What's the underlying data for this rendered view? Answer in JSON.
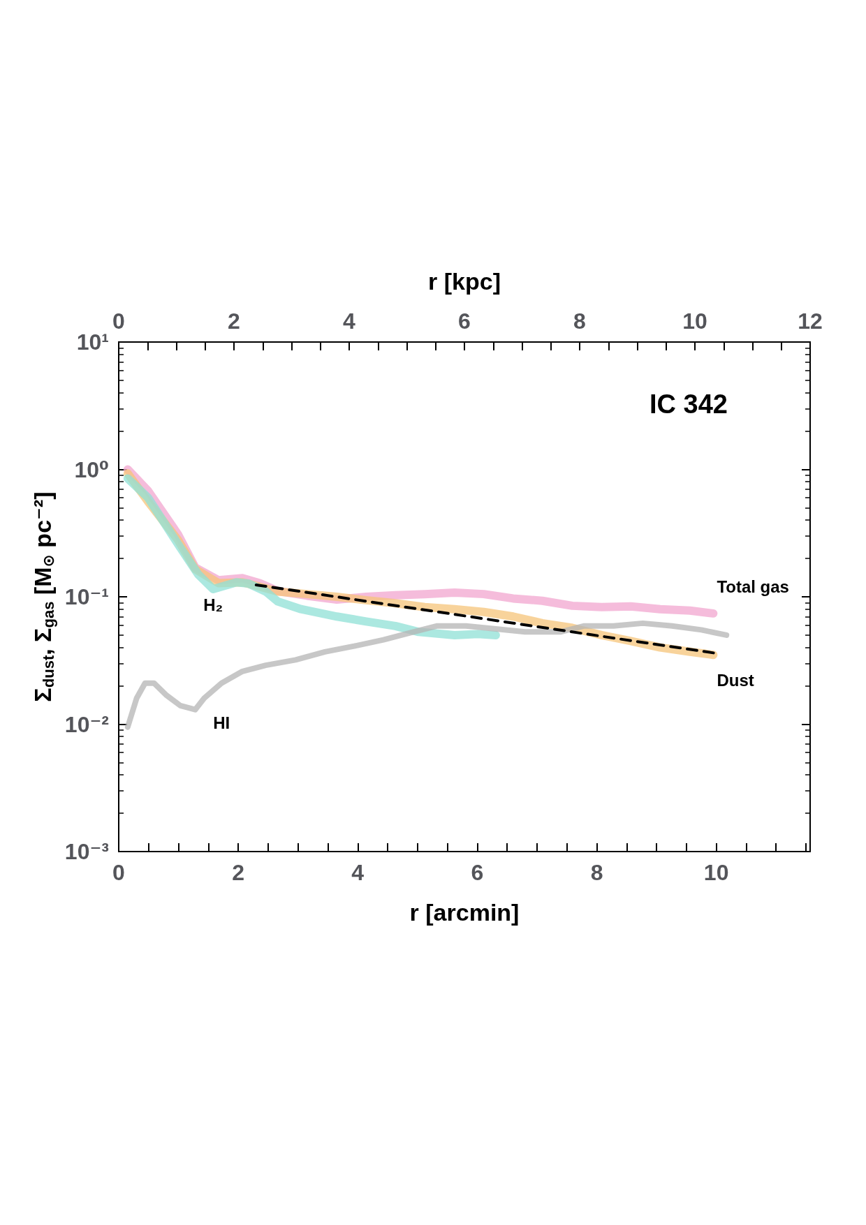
{
  "chart_data": {
    "type": "line",
    "xlabel": "r [arcmin]",
    "x2label": "r [kpc]",
    "ylabel": "Σ$_{dust}$, Σ$_{gas}$ [M$_{⊙}$ pc⁻²]",
    "annotations": [
      "IC 342"
    ],
    "log": "y",
    "grid": false,
    "legend": false,
    "marker": "none",
    "line_style": "solid",
    "xlim": [
      0,
      11.57
    ],
    "xticks": [
      0,
      {
        "value": 0.5,
        "label": null
      },
      {
        "value": 1,
        "label": null
      },
      {
        "value": 1.5,
        "label": null
      },
      2,
      {
        "value": 2.5,
        "label": null
      },
      {
        "value": 3,
        "label": null
      },
      {
        "value": 3.5,
        "label": null
      },
      4,
      {
        "value": 4.5,
        "label": null
      },
      {
        "value": 5,
        "label": null
      },
      {
        "value": 5.5,
        "label": null
      },
      6,
      {
        "value": 6.5,
        "label": null
      },
      {
        "value": 7,
        "label": null
      },
      {
        "value": 7.5,
        "label": null
      },
      8,
      {
        "value": 8.5,
        "label": null
      },
      {
        "value": 9,
        "label": null
      },
      {
        "value": 9.5,
        "label": null
      },
      10,
      {
        "value": 10.5,
        "label": null
      },
      {
        "value": 11,
        "label": null
      },
      {
        "value": 11.5,
        "label": null
      }
    ],
    "x2lim": [
      0,
      12
    ],
    "x2ticks": [
      0,
      {
        "value": 0.5,
        "label": null
      },
      {
        "value": 1,
        "label": null
      },
      {
        "value": 1.5,
        "label": null
      },
      2,
      {
        "value": 2.5,
        "label": null
      },
      {
        "value": 3,
        "label": null
      },
      {
        "value": 3.5,
        "label": null
      },
      4,
      {
        "value": 4.5,
        "label": null
      },
      {
        "value": 5,
        "label": null
      },
      {
        "value": 5.5,
        "label": null
      },
      6,
      {
        "value": 6.5,
        "label": null
      },
      {
        "value": 7,
        "label": null
      },
      {
        "value": 7.5,
        "label": null
      },
      8,
      {
        "value": 8.5,
        "label": null
      },
      {
        "value": 9,
        "label": null
      },
      {
        "value": 9.5,
        "label": null
      },
      10,
      {
        "value": 10.5,
        "label": null
      },
      {
        "value": 11,
        "label": null
      },
      {
        "value": 11.5,
        "label": null
      },
      12
    ],
    "ylim": [
      0.001,
      10
    ],
    "yticks": [
      {
        "value": 0.001,
        "label": "10⁻³"
      },
      {
        "value": 0.01,
        "label": "10⁻²"
      },
      {
        "value": 0.1,
        "label": "10⁻¹"
      },
      {
        "value": 1,
        "label": "10⁰"
      },
      {
        "value": 10,
        "label": "10¹"
      }
    ],
    "series": [
      {
        "name": "Total gas",
        "color": "#f2a6cf",
        "x": [
          0.15,
          0.49,
          0.99,
          1.28,
          1.67,
          2.07,
          2.36,
          2.66,
          3.15,
          3.65,
          4.14,
          4.63,
          5.12,
          5.62,
          6.11,
          6.6,
          7.09,
          7.59,
          8.08,
          8.57,
          9.06,
          9.56,
          9.95
        ],
        "values": [
          1.0,
          0.68,
          0.31,
          0.17,
          0.135,
          0.14,
          0.128,
          0.111,
          0.102,
          0.095,
          0.1,
          0.103,
          0.105,
          0.108,
          0.105,
          0.097,
          0.093,
          0.085,
          0.083,
          0.084,
          0.08,
          0.078,
          0.074
        ]
      },
      {
        "name": "Dust",
        "color": "#f5c47a",
        "x": [
          0.15,
          0.49,
          0.99,
          1.28,
          1.67,
          2.07,
          2.36,
          2.66,
          3.15,
          3.65,
          4.14,
          4.63,
          5.12,
          5.62,
          6.11,
          6.6,
          7.09,
          7.59,
          8.08,
          8.57,
          9.06,
          9.56,
          9.95
        ],
        "values": [
          0.93,
          0.56,
          0.28,
          0.165,
          0.128,
          0.13,
          0.12,
          0.11,
          0.105,
          0.1,
          0.094,
          0.089,
          0.083,
          0.08,
          0.076,
          0.07,
          0.062,
          0.057,
          0.05,
          0.045,
          0.04,
          0.037,
          0.035
        ]
      },
      {
        "name": "H₂",
        "color": "#8fe0d6",
        "x": [
          0.15,
          0.49,
          0.99,
          1.33,
          1.58,
          1.97,
          2.17,
          2.46,
          2.66,
          3.05,
          3.65,
          4.14,
          4.63,
          5.02,
          5.62,
          6.01,
          6.31
        ],
        "values": [
          0.85,
          0.6,
          0.26,
          0.15,
          0.115,
          0.13,
          0.127,
          0.11,
          0.092,
          0.08,
          0.07,
          0.064,
          0.059,
          0.053,
          0.05,
          0.051,
          0.05
        ]
      },
      {
        "name": "HI",
        "color": "#b4b4b4",
        "x": [
          0.15,
          0.3,
          0.44,
          0.59,
          0.79,
          1.03,
          1.28,
          1.43,
          1.72,
          2.07,
          2.46,
          2.96,
          3.45,
          3.94,
          4.43,
          4.93,
          5.32,
          5.81,
          6.31,
          6.8,
          7.39,
          7.78,
          8.28,
          8.77,
          9.26,
          9.75,
          10.17
        ],
        "values": [
          0.0095,
          0.016,
          0.021,
          0.021,
          0.017,
          0.014,
          0.013,
          0.016,
          0.021,
          0.026,
          0.029,
          0.032,
          0.037,
          0.041,
          0.046,
          0.053,
          0.059,
          0.059,
          0.056,
          0.053,
          0.053,
          0.059,
          0.059,
          0.062,
          0.059,
          0.055,
          0.05
        ]
      },
      {
        "color": "#000000",
        "line_style": "dashed",
        "x": [
          2.3,
          5.6,
          10.0
        ],
        "values": [
          0.124,
          0.073,
          0.036
        ]
      }
    ]
  }
}
